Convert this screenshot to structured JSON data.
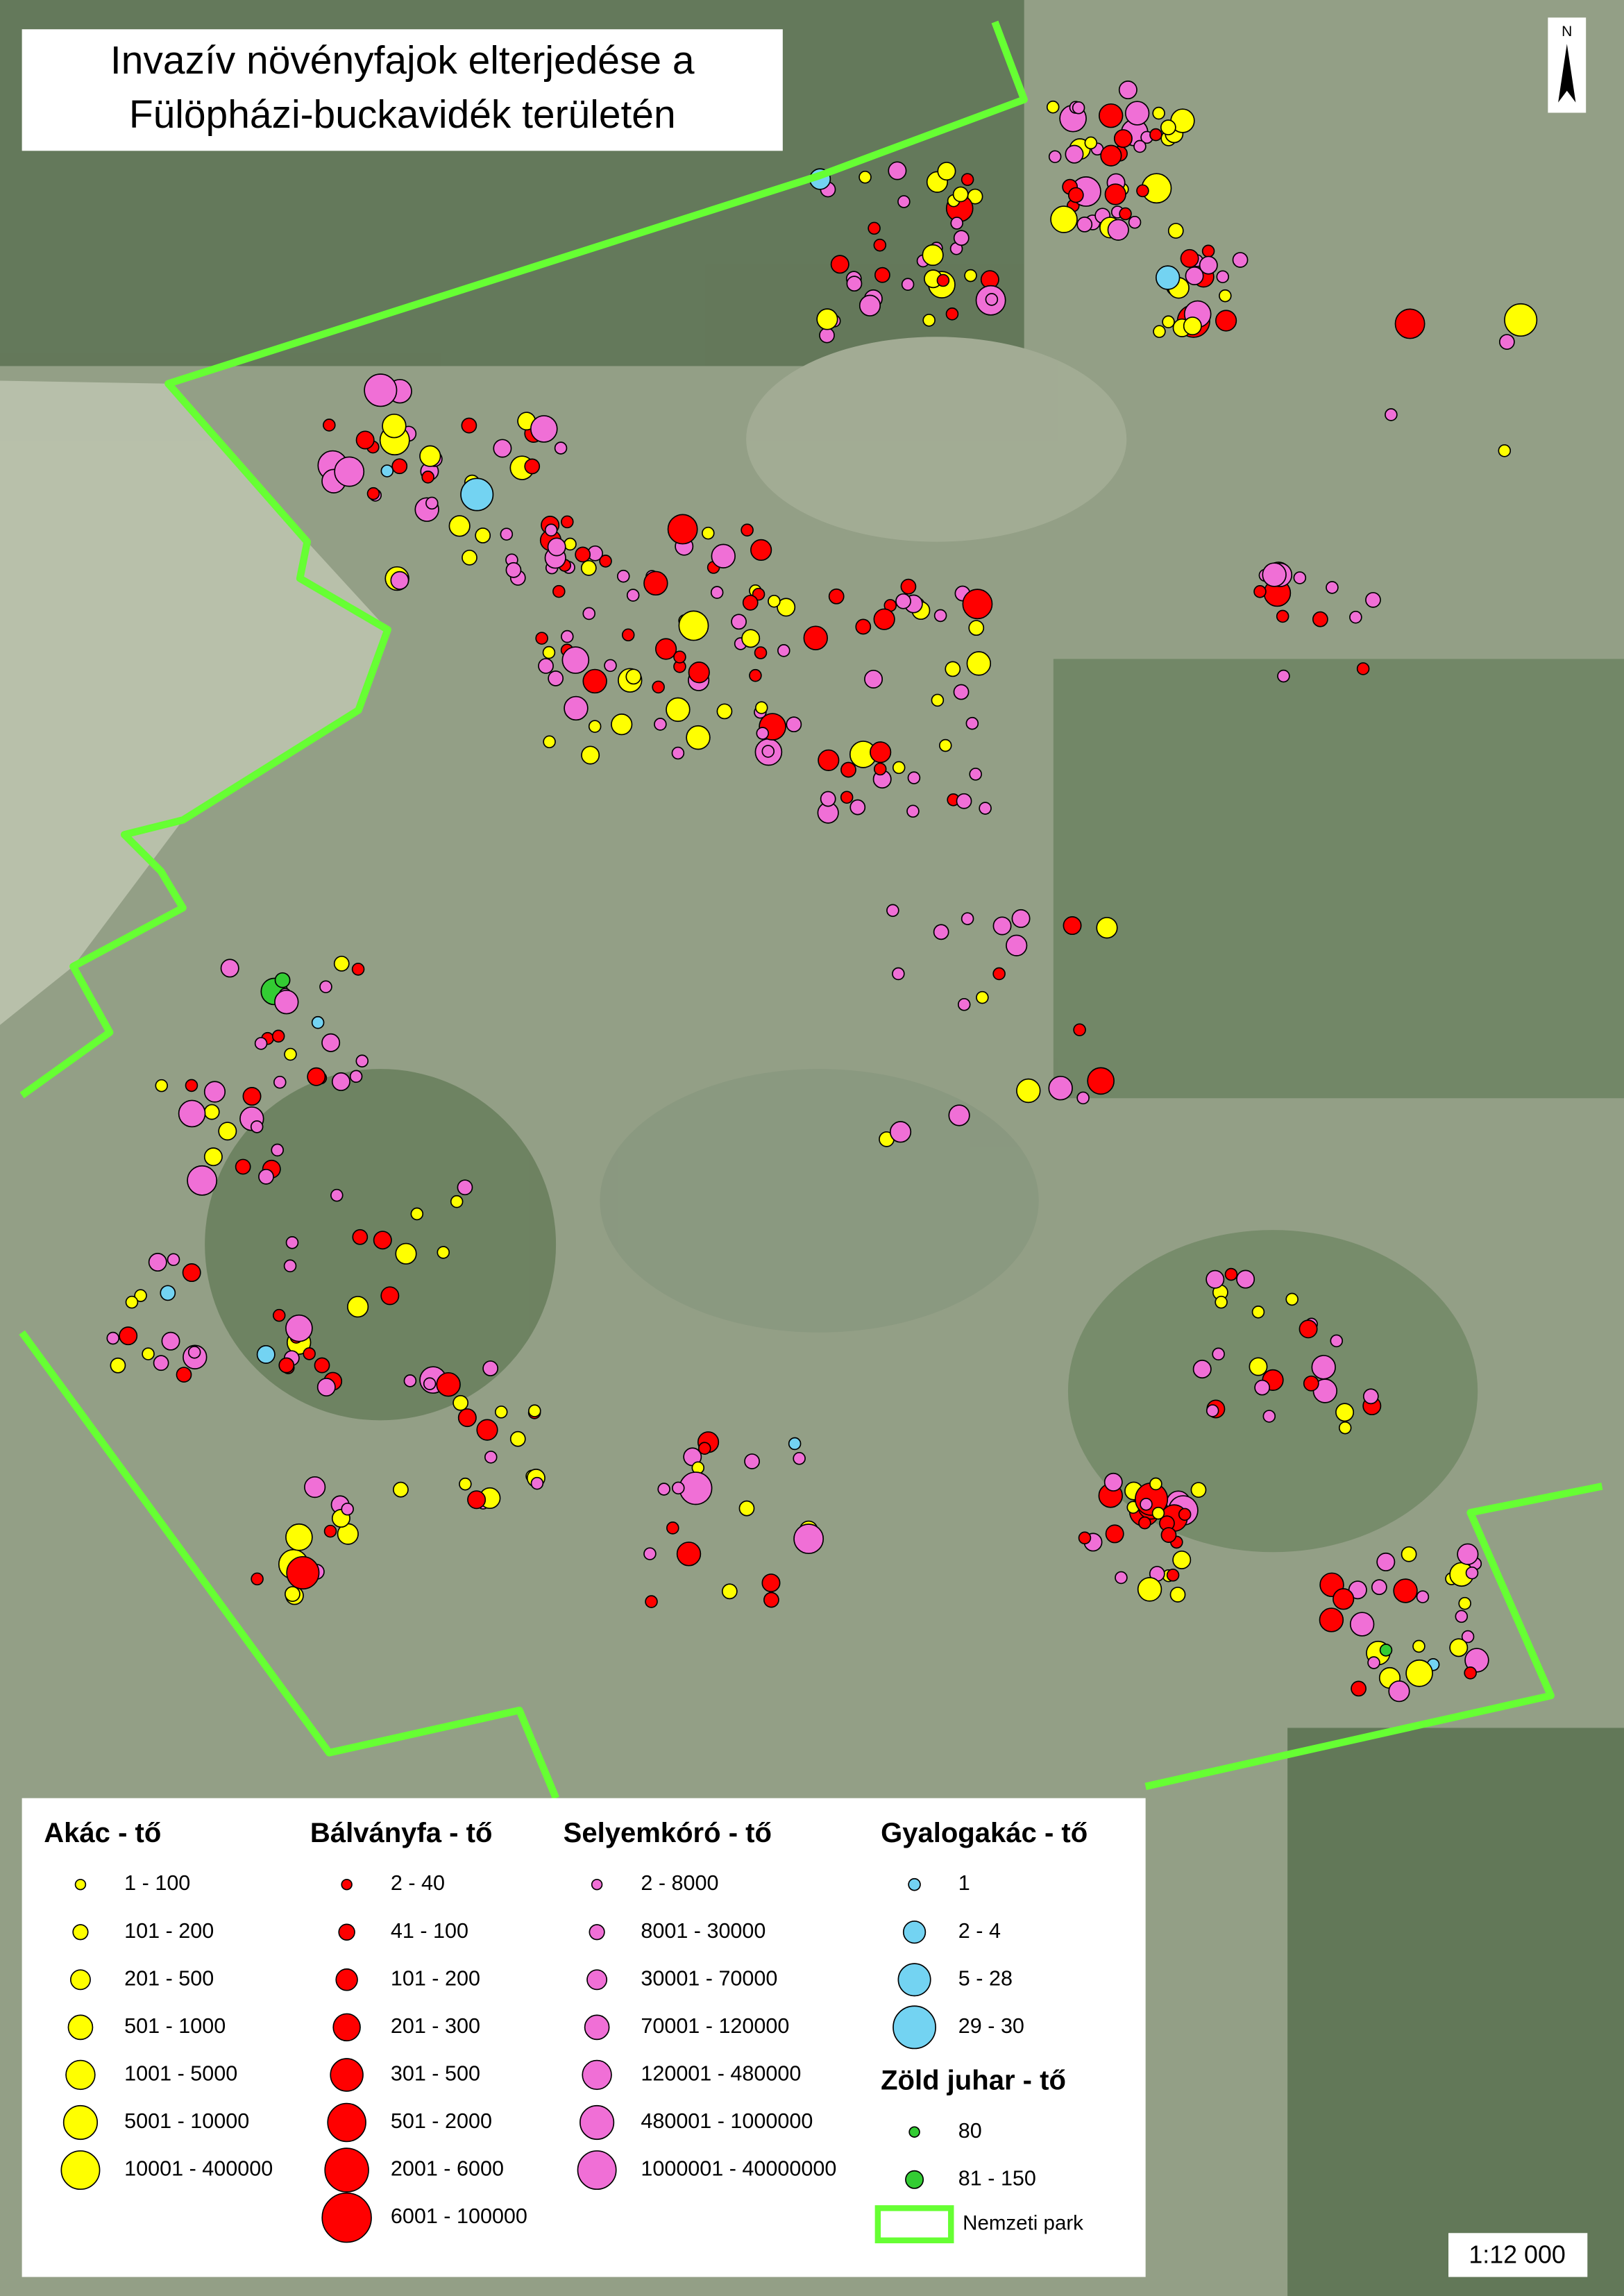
{
  "title": [
    "Invazív növényfajok elterjedése a",
    "Fülöpházi-buckavidék területén"
  ],
  "north": "N",
  "scale": "1:12 000",
  "legend": {
    "groups": [
      {
        "title": "Akác - tő",
        "items": [
          "1 - 100",
          "101 - 200",
          "201 - 500",
          "501 - 1000",
          "1001 - 5000",
          "5001 - 10000",
          "10001 - 400000"
        ]
      },
      {
        "title": "Bálványfa - tő",
        "items": [
          "2 - 40",
          "41 - 100",
          "101 - 200",
          "201 - 300",
          "301 - 500",
          "501 - 2000",
          "2001 - 6000",
          "6001 - 100000"
        ]
      },
      {
        "title": "Selyemkóró - tő",
        "items": [
          "2 - 8000",
          "8001 - 30000",
          "30001 - 70000",
          "70001 - 120000",
          "120001 - 480000",
          "480001 - 1000000",
          "1000001 - 40000000"
        ]
      },
      {
        "title": "Gyalogakác - tő",
        "items": [
          "1",
          "2 - 4",
          "5 - 28",
          "29 - 30"
        ]
      },
      {
        "title": "Zöld juhar - tő",
        "items": [
          "80",
          "81 - 150"
        ]
      }
    ],
    "boundary": "Nemzeti park"
  }
}
